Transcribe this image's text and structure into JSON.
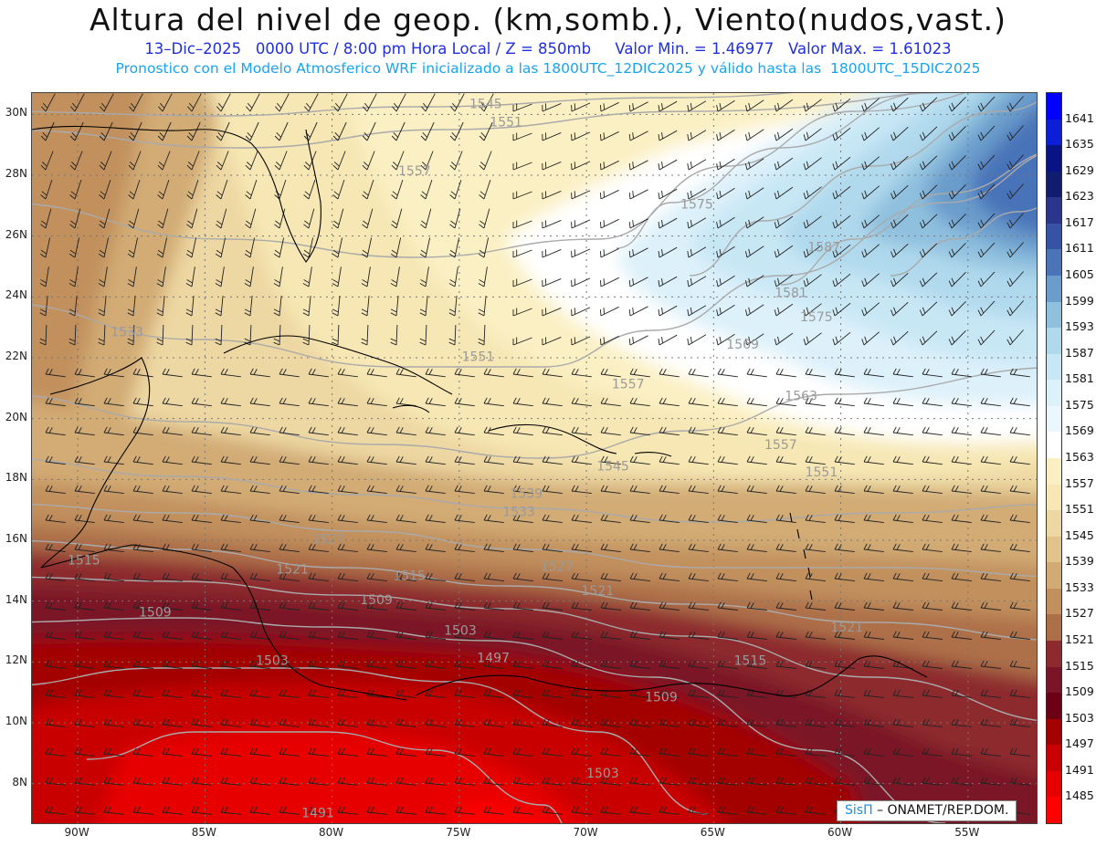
{
  "header": {
    "title": "Altura del nivel de geop. (km,somb.), Viento(nudos,vast.)",
    "subtitle_1": "13–Dic–2025   0000 UTC / 8:00 pm Hora Local / Z = 850mb     Valor Min. = 1.46977   Valor Max. = 1.61023",
    "subtitle_2": "Pronostico con el Modelo Atmosferico WRF inicializado a las 1800UTC_12DIC2025 y válido hasta las  1800UTC_15DIC2025"
  },
  "map": {
    "lat_labels": [
      "30N",
      "28N",
      "26N",
      "24N",
      "22N",
      "20N",
      "18N",
      "16N",
      "14N",
      "12N",
      "10N",
      "8N"
    ],
    "lon_labels": [
      "90W",
      "85W",
      "80W",
      "75W",
      "70W",
      "65W",
      "60W",
      "55W"
    ],
    "lat_values": [
      30,
      28,
      26,
      24,
      22,
      20,
      18,
      16,
      14,
      12,
      10,
      8
    ],
    "lon_values": [
      -90,
      -85,
      -80,
      -75,
      -70,
      -65,
      -60,
      -55
    ],
    "extent": {
      "lon_min": -91.8,
      "lon_max": -52.3,
      "lat_min": 6.7,
      "lat_max": 30.7
    },
    "contour_labels": [
      {
        "text": "1545",
        "lon": -74.6,
        "lat": 30.2
      },
      {
        "text": "1551",
        "lon": -73.8,
        "lat": 29.6
      },
      {
        "text": "1557",
        "lon": -77.4,
        "lat": 28.0
      },
      {
        "text": "1575",
        "lon": -66.3,
        "lat": 26.9
      },
      {
        "text": "1587",
        "lon": -61.3,
        "lat": 25.5
      },
      {
        "text": "1581",
        "lon": -62.6,
        "lat": 24.0
      },
      {
        "text": "1575",
        "lon": -61.6,
        "lat": 23.2
      },
      {
        "text": "1569",
        "lon": -64.5,
        "lat": 22.3
      },
      {
        "text": "1563",
        "lon": -62.2,
        "lat": 20.6
      },
      {
        "text": "1551",
        "lon": -74.9,
        "lat": 21.9
      },
      {
        "text": "1557",
        "lon": -69.0,
        "lat": 21.0
      },
      {
        "text": "1557",
        "lon": -63.0,
        "lat": 19.0
      },
      {
        "text": "1551",
        "lon": -61.4,
        "lat": 18.1
      },
      {
        "text": "1545",
        "lon": -69.6,
        "lat": 18.3
      },
      {
        "text": "1539",
        "lon": -73.0,
        "lat": 17.4
      },
      {
        "text": "1533",
        "lon": -88.7,
        "lat": 22.7
      },
      {
        "text": "1533",
        "lon": -73.3,
        "lat": 16.8
      },
      {
        "text": "1527",
        "lon": -80.8,
        "lat": 15.9
      },
      {
        "text": "1527",
        "lon": -71.8,
        "lat": 15.0
      },
      {
        "text": "1521",
        "lon": -82.2,
        "lat": 14.9
      },
      {
        "text": "1521",
        "lon": -70.2,
        "lat": 14.2
      },
      {
        "text": "1521",
        "lon": -60.4,
        "lat": 13.0
      },
      {
        "text": "1515",
        "lon": -90.4,
        "lat": 15.2
      },
      {
        "text": "1515",
        "lon": -77.6,
        "lat": 14.7
      },
      {
        "text": "1515",
        "lon": -64.2,
        "lat": 11.9
      },
      {
        "text": "1509",
        "lon": -87.6,
        "lat": 13.5
      },
      {
        "text": "1509",
        "lon": -78.9,
        "lat": 13.9
      },
      {
        "text": "1509",
        "lon": -67.7,
        "lat": 10.7
      },
      {
        "text": "1503",
        "lon": -75.6,
        "lat": 12.9
      },
      {
        "text": "1503",
        "lon": -83.0,
        "lat": 11.9
      },
      {
        "text": "1503",
        "lon": -70.0,
        "lat": 8.2
      },
      {
        "text": "1497",
        "lon": -74.3,
        "lat": 12.0
      },
      {
        "text": "1491",
        "lon": -81.2,
        "lat": 6.9
      }
    ]
  },
  "colorbar": {
    "labels": [
      "1641",
      "1635",
      "1629",
      "1623",
      "1617",
      "1611",
      "1605",
      "1599",
      "1593",
      "1587",
      "1581",
      "1575",
      "1569",
      "1563",
      "1557",
      "1551",
      "1545",
      "1539",
      "1533",
      "1527",
      "1521",
      "1515",
      "1509",
      "1503",
      "1497",
      "1491",
      "1485"
    ],
    "colors": [
      "#0000ff",
      "#0d1fd6",
      "#0a1386",
      "#101c70",
      "#29368c",
      "#3653a6",
      "#4a73b8",
      "#6a9ccc",
      "#8fc0de",
      "#b0d9ed",
      "#c8e7f5",
      "#ddf1fa",
      "#eaf8fd",
      "#ffffff",
      "#fbf0c4",
      "#f6e7b4",
      "#edd7a2",
      "#e2c38a",
      "#d2ab74",
      "#c1905d",
      "#ad6f48",
      "#8d2a2f",
      "#7a1527",
      "#6c0014",
      "#a30000",
      "#c80000",
      "#e60000",
      "#ff0000"
    ]
  },
  "credit": {
    "brand": "SisΠ",
    "text": "– ONAMET/REP.DOM."
  }
}
